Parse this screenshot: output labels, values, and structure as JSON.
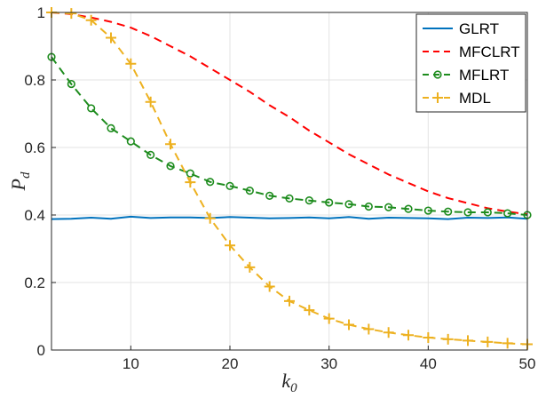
{
  "chart_data": {
    "type": "line",
    "xlabel": "k",
    "xlabel_sub": "0",
    "ylabel": "P",
    "ylabel_sub": "d",
    "xlim": [
      2,
      50
    ],
    "ylim": [
      0,
      1
    ],
    "xticks": [
      10,
      20,
      30,
      40,
      50
    ],
    "yticks": [
      0,
      0.2,
      0.4,
      0.6,
      0.8,
      1
    ],
    "ytick_labels": [
      "0",
      "0.2",
      "0.4",
      "0.6",
      "0.8",
      "1"
    ],
    "grid": true,
    "legend_position": "top-right",
    "series": [
      {
        "name": "GLRT",
        "color": "#0072BD",
        "line_style": "solid",
        "marker": "none",
        "x": [
          2,
          4,
          6,
          8,
          10,
          12,
          14,
          16,
          18,
          20,
          22,
          24,
          26,
          28,
          30,
          32,
          34,
          36,
          38,
          40,
          42,
          44,
          46,
          48,
          50
        ],
        "y": [
          0.388,
          0.389,
          0.392,
          0.389,
          0.395,
          0.391,
          0.393,
          0.393,
          0.391,
          0.394,
          0.392,
          0.39,
          0.391,
          0.393,
          0.39,
          0.394,
          0.389,
          0.392,
          0.391,
          0.39,
          0.388,
          0.392,
          0.391,
          0.393,
          0.389
        ]
      },
      {
        "name": "MFCLRT",
        "color": "#FF0000",
        "line_style": "dashed",
        "marker": "none",
        "x": [
          2,
          4,
          6,
          8,
          10,
          12,
          14,
          16,
          18,
          20,
          22,
          24,
          26,
          28,
          30,
          32,
          34,
          36,
          38,
          40,
          42,
          44,
          46,
          48,
          50
        ],
        "y": [
          1.0,
          0.995,
          0.985,
          0.972,
          0.955,
          0.93,
          0.9,
          0.87,
          0.835,
          0.8,
          0.765,
          0.725,
          0.69,
          0.65,
          0.615,
          0.58,
          0.55,
          0.52,
          0.495,
          0.47,
          0.45,
          0.435,
          0.42,
          0.41,
          0.402
        ]
      },
      {
        "name": "MFLRT",
        "color": "#1E8C1E",
        "line_style": "dashed",
        "marker": "circle",
        "x": [
          2,
          4,
          6,
          8,
          10,
          12,
          14,
          16,
          18,
          20,
          22,
          24,
          26,
          28,
          30,
          32,
          34,
          36,
          38,
          40,
          42,
          44,
          46,
          48,
          50
        ],
        "y": [
          0.868,
          0.788,
          0.716,
          0.657,
          0.618,
          0.578,
          0.545,
          0.523,
          0.498,
          0.486,
          0.472,
          0.457,
          0.449,
          0.443,
          0.437,
          0.432,
          0.425,
          0.423,
          0.418,
          0.413,
          0.41,
          0.408,
          0.408,
          0.405,
          0.4
        ]
      },
      {
        "name": "MDL",
        "color": "#EDB120",
        "line_style": "dashed",
        "marker": "plus",
        "x": [
          2,
          4,
          6,
          8,
          10,
          12,
          14,
          16,
          18,
          20,
          22,
          24,
          26,
          28,
          30,
          32,
          34,
          36,
          38,
          40,
          42,
          44,
          46,
          48,
          50
        ],
        "y": [
          1.0,
          0.997,
          0.977,
          0.925,
          0.848,
          0.735,
          0.61,
          0.497,
          0.39,
          0.31,
          0.245,
          0.188,
          0.145,
          0.118,
          0.093,
          0.075,
          0.062,
          0.052,
          0.044,
          0.037,
          0.032,
          0.028,
          0.024,
          0.02,
          0.017
        ]
      }
    ]
  }
}
